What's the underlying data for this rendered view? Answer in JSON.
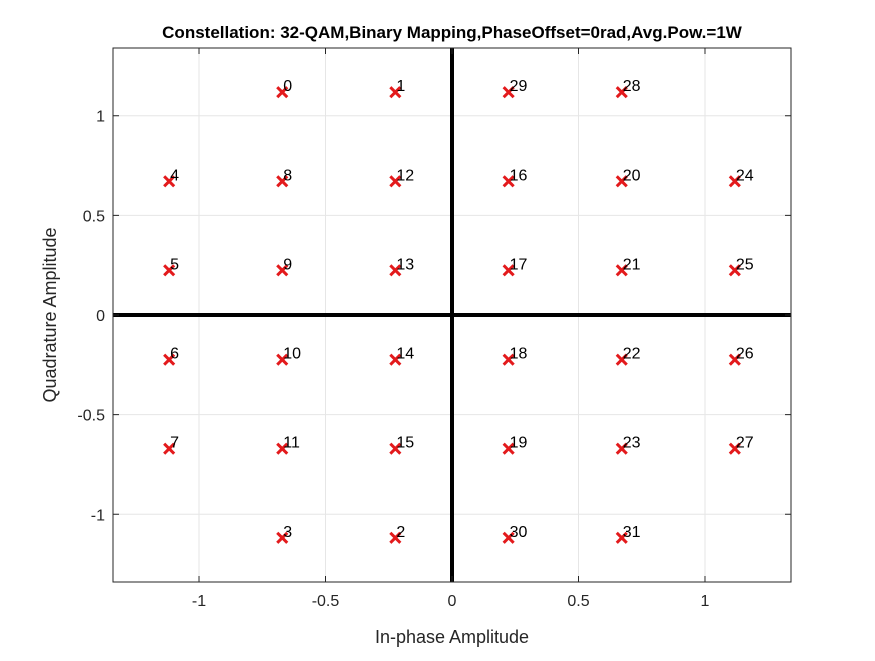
{
  "chart_data": {
    "type": "scatter",
    "title": "Constellation: 32-QAM,Binary Mapping,PhaseOffset=0rad,Avg.Pow.=1W",
    "xlabel": "In-phase Amplitude",
    "ylabel": "Quadrature Amplitude",
    "xlim": [
      -1.34,
      1.34
    ],
    "ylim": [
      -1.34,
      1.34
    ],
    "grid": true,
    "marker": "x",
    "x_ticks": [
      -1,
      -0.5,
      0,
      0.5,
      1
    ],
    "y_ticks": [
      -1,
      -0.5,
      0,
      0.5,
      1
    ],
    "x_tick_labels": [
      "-1",
      "-0.5",
      "0",
      "0.5",
      "1"
    ],
    "y_tick_labels": [
      "-1",
      "-0.5",
      "0",
      "0.5",
      "1"
    ],
    "points": [
      {
        "label": "0",
        "x": -0.671,
        "y": 1.118
      },
      {
        "label": "1",
        "x": -0.224,
        "y": 1.118
      },
      {
        "label": "2",
        "x": -0.224,
        "y": -1.118
      },
      {
        "label": "3",
        "x": -0.671,
        "y": -1.118
      },
      {
        "label": "4",
        "x": -1.118,
        "y": 0.671
      },
      {
        "label": "5",
        "x": -1.118,
        "y": 0.224
      },
      {
        "label": "6",
        "x": -1.118,
        "y": -0.224
      },
      {
        "label": "7",
        "x": -1.118,
        "y": -0.671
      },
      {
        "label": "8",
        "x": -0.671,
        "y": 0.671
      },
      {
        "label": "9",
        "x": -0.671,
        "y": 0.224
      },
      {
        "label": "10",
        "x": -0.671,
        "y": -0.224
      },
      {
        "label": "11",
        "x": -0.671,
        "y": -0.671
      },
      {
        "label": "12",
        "x": -0.224,
        "y": 0.671
      },
      {
        "label": "13",
        "x": -0.224,
        "y": 0.224
      },
      {
        "label": "14",
        "x": -0.224,
        "y": -0.224
      },
      {
        "label": "15",
        "x": -0.224,
        "y": -0.671
      },
      {
        "label": "16",
        "x": 0.224,
        "y": 0.671
      },
      {
        "label": "17",
        "x": 0.224,
        "y": 0.224
      },
      {
        "label": "18",
        "x": 0.224,
        "y": -0.224
      },
      {
        "label": "19",
        "x": 0.224,
        "y": -0.671
      },
      {
        "label": "20",
        "x": 0.671,
        "y": 0.671
      },
      {
        "label": "21",
        "x": 0.671,
        "y": 0.224
      },
      {
        "label": "22",
        "x": 0.671,
        "y": -0.224
      },
      {
        "label": "23",
        "x": 0.671,
        "y": -0.671
      },
      {
        "label": "24",
        "x": 1.118,
        "y": 0.671
      },
      {
        "label": "25",
        "x": 1.118,
        "y": 0.224
      },
      {
        "label": "26",
        "x": 1.118,
        "y": -0.224
      },
      {
        "label": "27",
        "x": 1.118,
        "y": -0.671
      },
      {
        "label": "28",
        "x": 0.671,
        "y": 1.118
      },
      {
        "label": "29",
        "x": 0.224,
        "y": 1.118
      },
      {
        "label": "30",
        "x": 0.224,
        "y": -1.118
      },
      {
        "label": "31",
        "x": 0.671,
        "y": -1.118
      }
    ],
    "colors": {
      "marker": "#e31a1c",
      "axes_lines": "#000000",
      "grid": "#e6e6e6",
      "frame": "#262626"
    }
  }
}
